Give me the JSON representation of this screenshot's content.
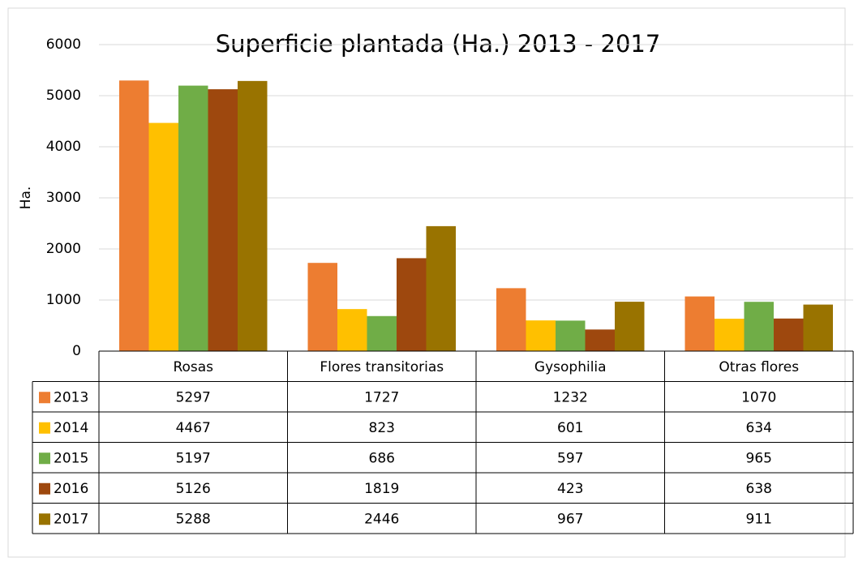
{
  "chart_data": {
    "type": "bar",
    "title": "Superficie plantada (Ha.) 2013 - 2017",
    "y_label": "Ha.",
    "categories": [
      "Rosas",
      "Flores transitorias",
      "Gysophilia",
      "Otras flores"
    ],
    "series": [
      {
        "name": "2013",
        "color": "#ED7D31",
        "values": [
          5297,
          1727,
          1232,
          1070
        ]
      },
      {
        "name": "2014",
        "color": "#FFC000",
        "values": [
          4467,
          823,
          601,
          634
        ]
      },
      {
        "name": "2015",
        "color": "#70AD47",
        "values": [
          5197,
          686,
          597,
          965
        ]
      },
      {
        "name": "2016",
        "color": "#9E480E",
        "values": [
          5126,
          1819,
          423,
          638
        ]
      },
      {
        "name": "2017",
        "color": "#997300",
        "values": [
          5288,
          2446,
          967,
          911
        ]
      }
    ],
    "ylim": [
      0,
      6000
    ],
    "yticks": [
      0,
      1000,
      2000,
      3000,
      4000,
      5000,
      6000
    ],
    "grid": true,
    "data_table": true
  }
}
